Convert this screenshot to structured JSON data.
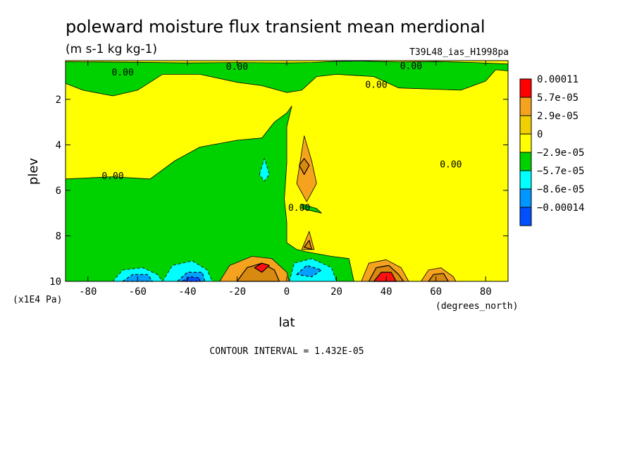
{
  "title": "poleward moisture flux transient mean merdional",
  "units": "(m s-1 kg kg-1)",
  "run_id": "T39L48_ias_H1998pa",
  "contour_interval": "CONTOUR INTERVAL = 1.432E-05",
  "chart_data": {
    "type": "contour",
    "xlabel": "lat",
    "xunits": "(degrees_north)",
    "ylabel": "plev",
    "yunits": "(x1E4 Pa)",
    "xlim": [
      -89,
      89
    ],
    "ylim": [
      10,
      0.3
    ],
    "y_inverted": true,
    "x_ticks": [
      -80,
      -60,
      -40,
      -20,
      0,
      20,
      40,
      60,
      80
    ],
    "x_tick_labels": [
      "-80",
      "-60",
      "-40",
      "-20",
      "0",
      "20",
      "40",
      "60",
      "80"
    ],
    "y_ticks": [
      2,
      4,
      6,
      8,
      10
    ],
    "y_tick_labels": [
      "2",
      "4",
      "6",
      "8",
      "10"
    ],
    "grid": false,
    "legend_position": "right",
    "legend": [
      {
        "label": "0.00011",
        "color": "#ff0000"
      },
      {
        "label": "5.7e-05",
        "color": "#f5a31e"
      },
      {
        "label": "2.9e-05",
        "color": "#f0d000"
      },
      {
        "label": "0",
        "color": "#ffff00"
      },
      {
        "label": "−2.9e-05",
        "color": "#00d200"
      },
      {
        "label": "−5.7e-05",
        "color": "#00ffff"
      },
      {
        "label": "−8.6e-05",
        "color": "#0096ff"
      },
      {
        "label": "−0.00014",
        "color": "#0050ff"
      }
    ],
    "colors": {
      "negative_weak": "#00d200",
      "positive_weak": "#ffff00",
      "positive_mid": "#f5a31e",
      "positive_strong": "#d88a10",
      "positive_max": "#ff1010",
      "negative_mid": "#00ffff",
      "negative_strong": "#00a0ff",
      "negative_max": "#0050ff"
    },
    "regions": [
      {
        "sign": "negative",
        "level": 1,
        "points": [
          [
            -89,
            0.35
          ],
          [
            -60,
            0.37
          ],
          [
            -40,
            0.4
          ],
          [
            -20,
            0.38
          ],
          [
            0,
            0.4
          ],
          [
            10,
            0.38
          ],
          [
            20,
            0.33
          ],
          [
            30,
            0.32
          ],
          [
            45,
            0.36
          ],
          [
            60,
            0.34
          ],
          [
            75,
            0.38
          ],
          [
            89,
            0.45
          ],
          [
            89,
            0.75
          ],
          [
            84,
            0.7
          ],
          [
            80,
            1.2
          ],
          [
            70,
            1.6
          ],
          [
            45,
            1.5
          ],
          [
            35,
            1.0
          ],
          [
            20,
            0.9
          ],
          [
            12,
            1.0
          ],
          [
            6,
            1.6
          ],
          [
            0,
            1.7
          ],
          [
            -10,
            1.4
          ],
          [
            -20,
            1.25
          ],
          [
            -35,
            0.9
          ],
          [
            -50,
            0.9
          ],
          [
            -60,
            1.6
          ],
          [
            -70,
            1.85
          ],
          [
            -82,
            1.6
          ],
          [
            -89,
            1.3
          ]
        ]
      },
      {
        "sign": "negative",
        "level": 1,
        "points": [
          [
            -89,
            5.5
          ],
          [
            -70,
            5.4
          ],
          [
            -55,
            5.5
          ],
          [
            -45,
            4.7
          ],
          [
            -35,
            4.1
          ],
          [
            -20,
            3.8
          ],
          [
            -10,
            3.7
          ],
          [
            -5,
            3.0
          ],
          [
            0,
            2.6
          ],
          [
            2,
            2.3
          ],
          [
            0,
            3.2
          ],
          [
            0,
            4.8
          ],
          [
            -1,
            6.4
          ],
          [
            0,
            7.4
          ],
          [
            0,
            8.3
          ],
          [
            4,
            8.6
          ],
          [
            8,
            8.7
          ],
          [
            18,
            8.9
          ],
          [
            25,
            9.0
          ],
          [
            27,
            10
          ],
          [
            -89,
            10
          ]
        ]
      },
      {
        "sign": "negative",
        "level": 1,
        "points": [
          [
            6,
            6.8
          ],
          [
            14,
            7.0
          ],
          [
            12,
            6.8
          ],
          [
            6,
            6.6
          ]
        ]
      },
      {
        "sign": "positive",
        "level": 2,
        "points": [
          [
            4,
            5.7
          ],
          [
            7,
            3.6
          ],
          [
            10,
            4.7
          ],
          [
            12,
            5.7
          ],
          [
            8,
            6.5
          ]
        ]
      },
      {
        "sign": "positive",
        "level": 3,
        "points": [
          [
            7,
            4.6
          ],
          [
            9,
            4.9
          ],
          [
            7,
            5.3
          ],
          [
            5,
            4.9
          ]
        ]
      },
      {
        "sign": "positive",
        "level": 2,
        "points": [
          [
            6,
            8.6
          ],
          [
            9,
            7.8
          ],
          [
            11,
            8.6
          ]
        ]
      },
      {
        "sign": "positive",
        "level": 3,
        "points": [
          [
            7,
            8.5
          ],
          [
            9,
            8.2
          ],
          [
            10,
            8.6
          ]
        ]
      },
      {
        "sign": "negative",
        "level": 2,
        "points": [
          [
            -11,
            5.3
          ],
          [
            -9,
            4.6
          ],
          [
            -7,
            5.3
          ],
          [
            -9,
            5.6
          ]
        ]
      },
      {
        "sign": "positive",
        "level": 2,
        "points": [
          [
            -27,
            10
          ],
          [
            -23,
            9.3
          ],
          [
            -14,
            8.9
          ],
          [
            -6,
            9.0
          ],
          [
            0,
            9.6
          ],
          [
            1,
            10
          ]
        ]
      },
      {
        "sign": "positive",
        "level": 3,
        "points": [
          [
            -20,
            10
          ],
          [
            -16,
            9.4
          ],
          [
            -10,
            9.2
          ],
          [
            -5,
            9.5
          ],
          [
            -3,
            10
          ]
        ]
      },
      {
        "sign": "positive",
        "level": 4,
        "points": [
          [
            -13,
            9.4
          ],
          [
            -10,
            9.2
          ],
          [
            -7,
            9.3
          ],
          [
            -10,
            9.6
          ]
        ]
      },
      {
        "sign": "positive",
        "level": 2,
        "points": [
          [
            30,
            10
          ],
          [
            33,
            9.2
          ],
          [
            40,
            9.05
          ],
          [
            46,
            9.4
          ],
          [
            49,
            10
          ]
        ]
      },
      {
        "sign": "positive",
        "level": 3,
        "points": [
          [
            33,
            10
          ],
          [
            36,
            9.4
          ],
          [
            41,
            9.3
          ],
          [
            45,
            9.7
          ],
          [
            47,
            10
          ]
        ]
      },
      {
        "sign": "positive",
        "level": 4,
        "points": [
          [
            35,
            10
          ],
          [
            38,
            9.6
          ],
          [
            42,
            9.6
          ],
          [
            44,
            10
          ]
        ]
      },
      {
        "sign": "positive",
        "level": 2,
        "points": [
          [
            54,
            10
          ],
          [
            57,
            9.5
          ],
          [
            62,
            9.4
          ],
          [
            67,
            9.8
          ],
          [
            68,
            10
          ]
        ]
      },
      {
        "sign": "positive",
        "level": 3,
        "points": [
          [
            57,
            10
          ],
          [
            59,
            9.7
          ],
          [
            63,
            9.65
          ],
          [
            65,
            10
          ]
        ]
      },
      {
        "sign": "negative",
        "level": 2,
        "points": [
          [
            -70,
            10
          ],
          [
            -66,
            9.5
          ],
          [
            -58,
            9.4
          ],
          [
            -52,
            9.7
          ],
          [
            -50,
            10
          ]
        ]
      },
      {
        "sign": "negative",
        "level": 3,
        "points": [
          [
            -66,
            10
          ],
          [
            -62,
            9.7
          ],
          [
            -56,
            9.7
          ],
          [
            -54,
            10
          ]
        ]
      },
      {
        "sign": "negative",
        "level": 2,
        "points": [
          [
            -50,
            10
          ],
          [
            -46,
            9.3
          ],
          [
            -38,
            9.1
          ],
          [
            -32,
            9.5
          ],
          [
            -30,
            10
          ]
        ]
      },
      {
        "sign": "negative",
        "level": 3,
        "points": [
          [
            -44,
            10
          ],
          [
            -40,
            9.6
          ],
          [
            -34,
            9.6
          ],
          [
            -33,
            10
          ]
        ]
      },
      {
        "sign": "negative",
        "level": 4,
        "points": [
          [
            -42,
            10
          ],
          [
            -39,
            9.8
          ],
          [
            -35,
            9.85
          ],
          [
            -35,
            10
          ]
        ]
      },
      {
        "sign": "negative",
        "level": 2,
        "points": [
          [
            1,
            10
          ],
          [
            3,
            9.2
          ],
          [
            10,
            9.0
          ],
          [
            18,
            9.4
          ],
          [
            20,
            10
          ]
        ]
      },
      {
        "sign": "negative",
        "level": 3,
        "points": [
          [
            4,
            9.7
          ],
          [
            8,
            9.3
          ],
          [
            14,
            9.5
          ],
          [
            10,
            9.8
          ]
        ]
      }
    ],
    "contour_labels": [
      {
        "text": "0.00",
        "x": -66,
        "y": 0.95
      },
      {
        "text": "0.00",
        "x": -20,
        "y": 0.7
      },
      {
        "text": "0.00",
        "x": 36,
        "y": 1.5
      },
      {
        "text": "0.00",
        "x": 50,
        "y": 0.25
      },
      {
        "text": "0.00",
        "x": -70,
        "y": 5.5
      },
      {
        "text": "0.00",
        "x": 66,
        "y": 5.0
      },
      {
        "text": "0.00",
        "x": 5,
        "y": 6.9
      }
    ]
  }
}
